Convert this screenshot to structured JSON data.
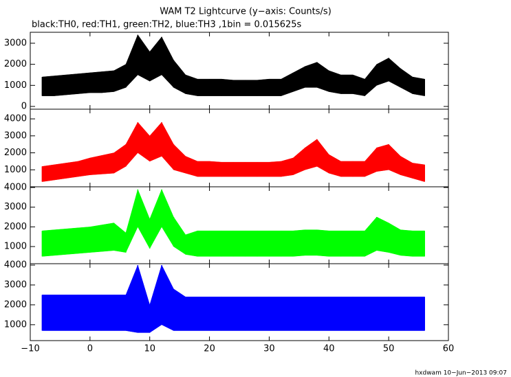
{
  "chart_data": {
    "type": "line",
    "title": "WAM T2 Lightcurve (y−axis: Counts/s)",
    "subtitle": "black:TH0, red:TH1, green:TH2, blue:TH3 ,1bin = 0.015625s",
    "footer": "hxdwam 10−Jun−2013 09:07",
    "x": [
      -8,
      -6,
      -4,
      -2,
      0,
      2,
      4,
      6,
      8,
      10,
      12,
      14,
      16,
      18,
      20,
      22,
      24,
      26,
      28,
      30,
      32,
      34,
      36,
      38,
      40,
      42,
      44,
      46,
      48,
      50,
      52,
      54,
      56
    ],
    "xlim": [
      -10,
      60
    ],
    "xticks": [
      {
        "value": -10,
        "label": "−10"
      },
      0,
      10,
      20,
      30,
      40,
      50,
      60
    ],
    "series": [
      {
        "color": "#000000",
        "ylim": [
          -130,
          3520
        ],
        "yticks": [
          0,
          1000,
          2000,
          3000
        ],
        "values": [
          900,
          950,
          1000,
          1050,
          1100,
          1150,
          1200,
          1450,
          2400,
          1900,
          2300,
          1500,
          1050,
          900,
          880,
          870,
          860,
          850,
          850,
          860,
          880,
          1150,
          1400,
          1500,
          1200,
          1050,
          1050,
          900,
          1500,
          1750,
          1350,
          1000,
          900
        ],
        "min": [
          500,
          500,
          550,
          600,
          650,
          650,
          700,
          900,
          1500,
          1200,
          1500,
          900,
          600,
          500,
          500,
          500,
          500,
          500,
          500,
          500,
          500,
          700,
          900,
          900,
          700,
          600,
          600,
          500,
          1000,
          1200,
          900,
          600,
          500
        ],
        "max": [
          1400,
          1450,
          1500,
          1550,
          1600,
          1650,
          1700,
          2000,
          3400,
          2600,
          3300,
          2200,
          1500,
          1300,
          1300,
          1300,
          1250,
          1250,
          1250,
          1300,
          1300,
          1600,
          1900,
          2100,
          1700,
          1500,
          1500,
          1300,
          2000,
          2300,
          1800,
          1400,
          1300
        ]
      },
      {
        "color": "#ff0000",
        "ylim": [
          0,
          4570
        ],
        "yticks": [
          1000,
          2000,
          3000,
          4000
        ],
        "values": [
          750,
          850,
          950,
          1050,
          1200,
          1300,
          1400,
          1850,
          2900,
          2250,
          2800,
          1750,
          1300,
          1050,
          1050,
          1000,
          1000,
          1000,
          1000,
          1000,
          1050,
          1200,
          1650,
          2000,
          1350,
          1050,
          1050,
          1050,
          1600,
          1750,
          1250,
          950,
          800
        ],
        "min": [
          300,
          400,
          500,
          600,
          700,
          750,
          800,
          1200,
          2000,
          1500,
          1800,
          1000,
          800,
          600,
          600,
          600,
          600,
          600,
          600,
          600,
          600,
          700,
          1000,
          1200,
          800,
          600,
          600,
          600,
          900,
          1000,
          700,
          500,
          300
        ],
        "max": [
          1200,
          1300,
          1400,
          1500,
          1700,
          1850,
          2000,
          2500,
          3800,
          3000,
          3800,
          2500,
          1800,
          1500,
          1500,
          1450,
          1450,
          1450,
          1450,
          1450,
          1500,
          1700,
          2300,
          2800,
          1900,
          1500,
          1500,
          1500,
          2300,
          2500,
          1800,
          1400,
          1300
        ]
      },
      {
        "color": "#00ff00",
        "ylim": [
          130,
          4035
        ],
        "yticks": [
          1000,
          2000,
          3000,
          4000
        ],
        "values": [
          1150,
          1200,
          1250,
          1300,
          1350,
          1400,
          1500,
          1200,
          2950,
          1650,
          2950,
          1750,
          1100,
          1150,
          1150,
          1150,
          1150,
          1150,
          1150,
          1150,
          1150,
          1150,
          1200,
          1200,
          1150,
          1150,
          1150,
          1150,
          1650,
          1450,
          1200,
          1150,
          1150
        ],
        "min": [
          500,
          550,
          600,
          650,
          700,
          750,
          800,
          700,
          2000,
          900,
          2000,
          1000,
          600,
          500,
          500,
          500,
          500,
          500,
          500,
          500,
          500,
          500,
          550,
          550,
          500,
          500,
          500,
          500,
          800,
          700,
          550,
          500,
          500
        ],
        "max": [
          1800,
          1850,
          1900,
          1950,
          2000,
          2100,
          2200,
          1700,
          3900,
          2400,
          3900,
          2500,
          1600,
          1800,
          1800,
          1800,
          1800,
          1800,
          1800,
          1800,
          1800,
          1800,
          1850,
          1850,
          1800,
          1800,
          1800,
          1800,
          2500,
          2200,
          1850,
          1800,
          1800
        ]
      },
      {
        "color": "#0000ff",
        "ylim": [
          200,
          4070
        ],
        "yticks": [
          1000,
          2000,
          3000,
          4000
        ],
        "values": [
          1600,
          1600,
          1600,
          1600,
          1600,
          1600,
          1600,
          1600,
          2300,
          1300,
          2500,
          1750,
          1550,
          1550,
          1550,
          1550,
          1550,
          1550,
          1550,
          1550,
          1550,
          1550,
          1550,
          1550,
          1550,
          1550,
          1550,
          1550,
          1550,
          1550,
          1550,
          1550,
          1550
        ],
        "min": [
          700,
          700,
          700,
          700,
          700,
          700,
          700,
          700,
          600,
          600,
          1000,
          700,
          700,
          700,
          700,
          700,
          700,
          700,
          700,
          700,
          700,
          700,
          700,
          700,
          700,
          700,
          700,
          700,
          700,
          700,
          700,
          700,
          700
        ],
        "max": [
          2500,
          2500,
          2500,
          2500,
          2500,
          2500,
          2500,
          2500,
          4000,
          2000,
          4000,
          2800,
          2400,
          2400,
          2400,
          2400,
          2400,
          2400,
          2400,
          2400,
          2400,
          2400,
          2400,
          2400,
          2400,
          2400,
          2400,
          2400,
          2400,
          2400,
          2400,
          2400,
          2400
        ]
      }
    ]
  }
}
